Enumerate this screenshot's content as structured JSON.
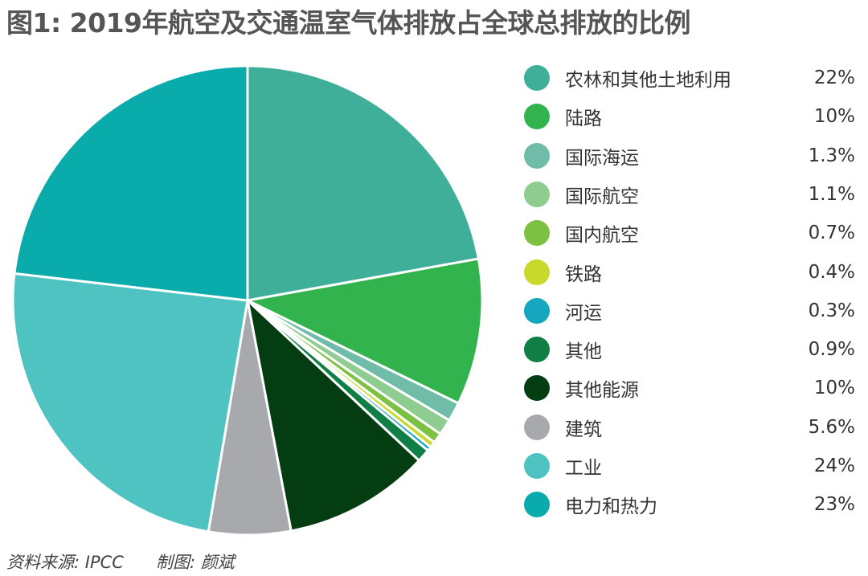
{
  "chart_data": {
    "type": "pie",
    "title": "图1: 2019年航空及交通温室气体排放占全球总排放的比例",
    "start": "top",
    "direction": "clockwise",
    "legend_position": "right",
    "slices": [
      {
        "label": "农林和其他土地利用",
        "value": 22,
        "display": "22%",
        "color": "#3faf9a"
      },
      {
        "label": "陆路",
        "value": 10,
        "display": "10%",
        "color": "#33b34e"
      },
      {
        "label": "国际海运",
        "value": 1.3,
        "display": "1.3%",
        "color": "#6fbca8"
      },
      {
        "label": "国际航空",
        "value": 1.1,
        "display": "1.1%",
        "color": "#8fcc8f"
      },
      {
        "label": "国内航空",
        "value": 0.7,
        "display": "0.7%",
        "color": "#7dc142"
      },
      {
        "label": "铁路",
        "value": 0.4,
        "display": "0.4%",
        "color": "#c8d92c"
      },
      {
        "label": "河运",
        "value": 0.3,
        "display": "0.3%",
        "color": "#16a6c0"
      },
      {
        "label": "其他",
        "value": 0.9,
        "display": "0.9%",
        "color": "#0f7f45"
      },
      {
        "label": "其他能源",
        "value": 10,
        "display": "10%",
        "color": "#043d12"
      },
      {
        "label": "建筑",
        "value": 5.6,
        "display": "5.6%",
        "color": "#a7a9ac"
      },
      {
        "label": "工业",
        "value": 24,
        "display": "24%",
        "color": "#4fc2c2"
      },
      {
        "label": "电力和热力",
        "value": 23,
        "display": "23%",
        "color": "#0aabab"
      }
    ]
  },
  "footer": {
    "source": "资料来源: IPCC",
    "author": "制图: 颜斌"
  }
}
